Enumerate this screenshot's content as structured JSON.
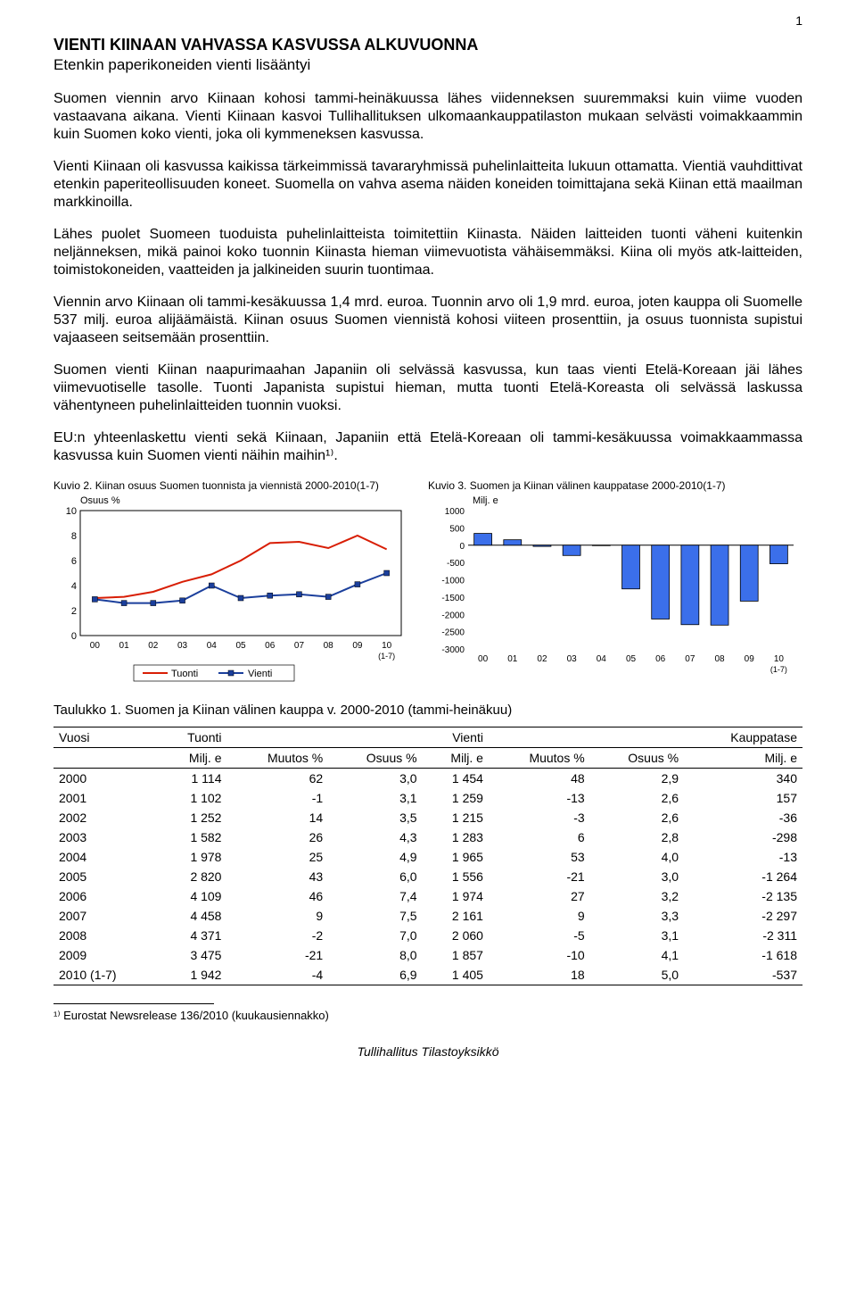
{
  "page_number": "1",
  "title": "VIENTI KIINAAN VAHVASSA KASVUSSA ALKUVUONNA",
  "subtitle": "Etenkin paperikoneiden vienti lisääntyi",
  "paragraphs": [
    "Suomen viennin arvo Kiinaan kohosi tammi-heinäkuussa lähes viidenneksen suuremmaksi kuin viime vuoden vastaavana aikana. Vienti Kiinaan kasvoi Tullihallituksen ulkomaankauppatilaston mukaan selvästi voimakkaammin kuin Suomen koko vienti, joka oli kymmeneksen kasvussa.",
    "Vienti Kiinaan oli kasvussa kaikissa tärkeimmissä tavararyhmissä puhelinlaitteita lukuun ottamatta. Vientiä vauhdittivat etenkin paperiteollisuuden koneet. Suomella on vahva asema näiden koneiden toimittajana sekä Kiinan että maailman markkinoilla.",
    "Lähes puolet Suomeen tuoduista puhelinlaitteista toimitettiin Kiinasta. Näiden laitteiden tuonti väheni kuitenkin neljänneksen, mikä painoi koko tuonnin Kiinasta hieman viimevuotista vähäisemmäksi. Kiina oli myös atk-laitteiden, toimistokoneiden, vaatteiden ja jalkineiden suurin tuontimaa.",
    "Viennin arvo Kiinaan oli tammi-kesäkuussa 1,4 mrd. euroa. Tuonnin arvo oli 1,9 mrd. euroa, joten kauppa oli Suomelle 537 milj. euroa alijäämäistä. Kiinan osuus Suomen viennistä kohosi viiteen prosenttiin, ja osuus tuonnista supistui vajaaseen seitsemään prosenttiin.",
    "Suomen vienti Kiinan naapurimaahan Japaniin oli selvässä kasvussa, kun taas vienti Etelä-Koreaan jäi lähes viimevuotiselle tasolle. Tuonti Japanista supistui hieman, mutta tuonti Etelä-Koreasta oli selvässä laskussa vähentyneen puhelinlaitteiden tuonnin vuoksi.",
    "EU:n yhteenlaskettu vienti sekä Kiinaan, Japaniin että Etelä-Koreaan oli tammi-kesäkuussa voimakkaammassa kasvussa kuin Suomen vienti näihin maihin¹⁾."
  ],
  "chart2": {
    "caption": "Kuvio 2. Kiinan osuus Suomen tuonnista ja viennistä 2000-2010(1-7)",
    "ylabel": "Osuus %",
    "type": "line",
    "categories": [
      "00",
      "01",
      "02",
      "03",
      "04",
      "05",
      "06",
      "07",
      "08",
      "09",
      "10 (1-7)"
    ],
    "series": [
      {
        "name": "Tuonti",
        "color": "#d81e05",
        "marker": "none",
        "values": [
          3.0,
          3.1,
          3.5,
          4.3,
          4.9,
          6.0,
          7.4,
          7.5,
          7.0,
          8.0,
          6.9
        ]
      },
      {
        "name": "Vienti",
        "color": "#1b3f9c",
        "marker": "square",
        "values": [
          2.9,
          2.6,
          2.6,
          2.8,
          4.0,
          3.0,
          3.2,
          3.3,
          3.1,
          4.1,
          5.0
        ]
      }
    ],
    "ylim": [
      0,
      10
    ],
    "ytick_step": 2,
    "background": "#ffffff",
    "grid": "#000000",
    "line_width": 2,
    "legend_border": "#000000"
  },
  "chart3": {
    "caption": "Kuvio 3. Suomen ja Kiinan välinen kauppatase 2000-2010(1-7)",
    "ylabel": "Milj. e",
    "type": "bar",
    "categories": [
      "00",
      "01",
      "02",
      "03",
      "04",
      "05",
      "06",
      "07",
      "08",
      "09",
      "10 (1-7)"
    ],
    "values": [
      340,
      157,
      -36,
      -298,
      -13,
      -1264,
      -2135,
      -2297,
      -2311,
      -1618,
      -537
    ],
    "bar_color": "#3b6fea",
    "bar_border": "#000000",
    "ylim": [
      -3000,
      1000
    ],
    "ytick_step": 500,
    "background": "#ffffff",
    "grid": "#000000",
    "bar_width": 0.6
  },
  "table": {
    "caption": "Taulukko 1. Suomen ja Kiinan välinen kauppa v. 2000-2010 (tammi-heinäkuu)",
    "header_top": {
      "vuosi": "Vuosi",
      "tuonti": "Tuonti",
      "vienti": "Vienti",
      "kauppa": "Kauppatase"
    },
    "header_sub": {
      "milj": "Milj. e",
      "muutos": "Muutos %",
      "osuus": "Osuus %"
    },
    "rows": [
      {
        "y": "2000",
        "t_m": "1 114",
        "t_mu": "62",
        "t_o": "3,0",
        "v_m": "1 454",
        "v_mu": "48",
        "v_o": "2,9",
        "k": "340"
      },
      {
        "y": "2001",
        "t_m": "1 102",
        "t_mu": "-1",
        "t_o": "3,1",
        "v_m": "1 259",
        "v_mu": "-13",
        "v_o": "2,6",
        "k": "157"
      },
      {
        "y": "2002",
        "t_m": "1 252",
        "t_mu": "14",
        "t_o": "3,5",
        "v_m": "1 215",
        "v_mu": "-3",
        "v_o": "2,6",
        "k": "-36"
      },
      {
        "y": "2003",
        "t_m": "1 582",
        "t_mu": "26",
        "t_o": "4,3",
        "v_m": "1 283",
        "v_mu": "6",
        "v_o": "2,8",
        "k": "-298"
      },
      {
        "y": "2004",
        "t_m": "1 978",
        "t_mu": "25",
        "t_o": "4,9",
        "v_m": "1 965",
        "v_mu": "53",
        "v_o": "4,0",
        "k": "-13"
      },
      {
        "y": "2005",
        "t_m": "2 820",
        "t_mu": "43",
        "t_o": "6,0",
        "v_m": "1 556",
        "v_mu": "-21",
        "v_o": "3,0",
        "k": "-1 264"
      },
      {
        "y": "2006",
        "t_m": "4 109",
        "t_mu": "46",
        "t_o": "7,4",
        "v_m": "1 974",
        "v_mu": "27",
        "v_o": "3,2",
        "k": "-2 135"
      },
      {
        "y": "2007",
        "t_m": "4 458",
        "t_mu": "9",
        "t_o": "7,5",
        "v_m": "2 161",
        "v_mu": "9",
        "v_o": "3,3",
        "k": "-2 297"
      },
      {
        "y": "2008",
        "t_m": "4 371",
        "t_mu": "-2",
        "t_o": "7,0",
        "v_m": "2 060",
        "v_mu": "-5",
        "v_o": "3,1",
        "k": "-2 311"
      },
      {
        "y": "2009",
        "t_m": "3 475",
        "t_mu": "-21",
        "t_o": "8,0",
        "v_m": "1 857",
        "v_mu": "-10",
        "v_o": "4,1",
        "k": "-1 618"
      },
      {
        "y": "2010 (1-7)",
        "t_m": "1 942",
        "t_mu": "-4",
        "t_o": "6,9",
        "v_m": "1 405",
        "v_mu": "18",
        "v_o": "5,0",
        "k": "-537"
      }
    ]
  },
  "footnote": "¹⁾ Eurostat Newsrelease 136/2010 (kuukausiennakko)",
  "footer": "Tullihallitus Tilastoyksikkö"
}
